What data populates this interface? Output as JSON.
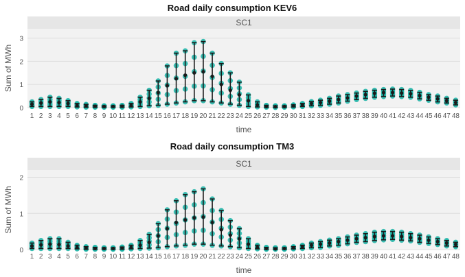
{
  "chart_data": [
    {
      "type": "scatter",
      "title": "Road daily consumption KEV6",
      "facet_label": "SC1",
      "xlabel": "time",
      "ylabel": "Sum of MWh",
      "ylim": [
        0,
        3.4
      ],
      "yticks": [
        0,
        1,
        2,
        3
      ],
      "grid": "horizontal",
      "legend": "none",
      "colors": {
        "point": "#1ab3a6",
        "bar": "#1a1a1a",
        "panel": "#f2f2f2",
        "strip": "#e6e6e6"
      },
      "x": [
        1,
        2,
        3,
        4,
        5,
        6,
        7,
        8,
        9,
        10,
        11,
        12,
        13,
        14,
        15,
        16,
        17,
        18,
        19,
        20,
        21,
        22,
        23,
        24,
        25,
        26,
        27,
        28,
        29,
        30,
        31,
        32,
        33,
        34,
        35,
        36,
        37,
        38,
        39,
        40,
        41,
        42,
        43,
        44,
        45,
        46,
        47,
        48
      ],
      "mean": [
        0.15,
        0.2,
        0.25,
        0.22,
        0.18,
        0.1,
        0.08,
        0.06,
        0.05,
        0.05,
        0.06,
        0.1,
        0.25,
        0.4,
        0.65,
        0.95,
        1.25,
        1.4,
        1.5,
        1.55,
        1.35,
        1.0,
        0.75,
        0.55,
        0.3,
        0.12,
        0.05,
        0.04,
        0.05,
        0.08,
        0.12,
        0.18,
        0.22,
        0.28,
        0.35,
        0.42,
        0.5,
        0.56,
        0.62,
        0.65,
        0.65,
        0.63,
        0.6,
        0.52,
        0.45,
        0.38,
        0.3,
        0.22
      ],
      "min": [
        0.05,
        0.05,
        0.05,
        0.05,
        0.05,
        0.03,
        0.02,
        0.02,
        0.02,
        0.02,
        0.02,
        0.03,
        0.05,
        0.08,
        0.1,
        0.15,
        0.2,
        0.25,
        0.3,
        0.3,
        0.25,
        0.2,
        0.15,
        0.1,
        0.05,
        0.03,
        0.02,
        0.01,
        0.02,
        0.03,
        0.05,
        0.08,
        0.1,
        0.15,
        0.2,
        0.28,
        0.35,
        0.4,
        0.45,
        0.48,
        0.5,
        0.48,
        0.45,
        0.38,
        0.32,
        0.25,
        0.2,
        0.12
      ],
      "max": [
        0.25,
        0.35,
        0.45,
        0.4,
        0.3,
        0.18,
        0.14,
        0.1,
        0.08,
        0.08,
        0.1,
        0.18,
        0.45,
        0.75,
        1.15,
        1.8,
        2.35,
        2.45,
        2.8,
        2.85,
        2.35,
        1.9,
        1.5,
        1.1,
        0.55,
        0.25,
        0.1,
        0.08,
        0.08,
        0.12,
        0.18,
        0.26,
        0.32,
        0.4,
        0.5,
        0.56,
        0.63,
        0.7,
        0.75,
        0.78,
        0.8,
        0.78,
        0.74,
        0.66,
        0.56,
        0.5,
        0.4,
        0.32
      ]
    },
    {
      "type": "scatter",
      "title": "Road daily consumption TM3",
      "facet_label": "SC1",
      "xlabel": "time",
      "ylabel": "Sum of MWh",
      "ylim": [
        0,
        2.2
      ],
      "yticks": [
        0,
        1,
        2
      ],
      "grid": "horizontal",
      "legend": "none",
      "colors": {
        "point": "#1ab3a6",
        "bar": "#1a1a1a",
        "panel": "#f2f2f2",
        "strip": "#e6e6e6"
      },
      "x": [
        1,
        2,
        3,
        4,
        5,
        6,
        7,
        8,
        9,
        10,
        11,
        12,
        13,
        14,
        15,
        16,
        17,
        18,
        19,
        20,
        21,
        22,
        23,
        24,
        25,
        26,
        27,
        28,
        29,
        30,
        31,
        32,
        33,
        34,
        35,
        36,
        37,
        38,
        39,
        40,
        41,
        42,
        43,
        44,
        45,
        46,
        47,
        48
      ],
      "mean": [
        0.1,
        0.13,
        0.15,
        0.14,
        0.1,
        0.06,
        0.04,
        0.03,
        0.03,
        0.03,
        0.04,
        0.06,
        0.12,
        0.2,
        0.38,
        0.58,
        0.75,
        0.82,
        0.88,
        0.9,
        0.75,
        0.55,
        0.4,
        0.3,
        0.15,
        0.06,
        0.03,
        0.02,
        0.03,
        0.05,
        0.08,
        0.12,
        0.15,
        0.18,
        0.22,
        0.26,
        0.3,
        0.33,
        0.36,
        0.38,
        0.38,
        0.36,
        0.33,
        0.3,
        0.26,
        0.22,
        0.18,
        0.14
      ],
      "min": [
        0.03,
        0.03,
        0.03,
        0.03,
        0.03,
        0.02,
        0.01,
        0.01,
        0.01,
        0.01,
        0.01,
        0.02,
        0.03,
        0.04,
        0.05,
        0.08,
        0.1,
        0.12,
        0.15,
        0.15,
        0.12,
        0.1,
        0.08,
        0.05,
        0.03,
        0.02,
        0.01,
        0.01,
        0.01,
        0.02,
        0.03,
        0.05,
        0.06,
        0.1,
        0.12,
        0.16,
        0.2,
        0.22,
        0.25,
        0.27,
        0.28,
        0.26,
        0.24,
        0.2,
        0.17,
        0.14,
        0.1,
        0.08
      ],
      "max": [
        0.18,
        0.25,
        0.3,
        0.3,
        0.2,
        0.12,
        0.08,
        0.06,
        0.05,
        0.05,
        0.07,
        0.12,
        0.25,
        0.42,
        0.72,
        1.1,
        1.35,
        1.52,
        1.6,
        1.68,
        1.4,
        1.08,
        0.8,
        0.58,
        0.3,
        0.12,
        0.06,
        0.05,
        0.05,
        0.08,
        0.12,
        0.18,
        0.22,
        0.26,
        0.3,
        0.35,
        0.4,
        0.44,
        0.48,
        0.5,
        0.5,
        0.48,
        0.44,
        0.4,
        0.35,
        0.3,
        0.25,
        0.2
      ]
    }
  ]
}
